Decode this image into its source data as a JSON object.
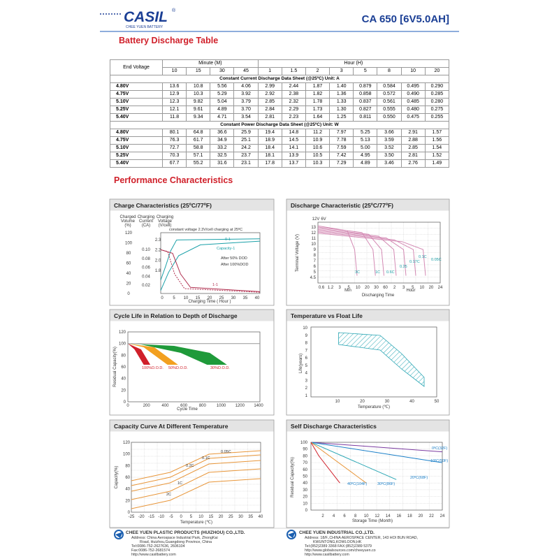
{
  "header": {
    "brand": "CASIL",
    "registered": "®",
    "brand_sub": "CHEE YUEN BATTERY",
    "model": "CA 650 [6V5.0AH]"
  },
  "discharge_table": {
    "title": "Battery Discharge Table",
    "end_voltage": "End Voltage",
    "minute_group": "Minute (M)",
    "hour_group": "Hour (H)",
    "columns": [
      "10",
      "15",
      "30",
      "45",
      "1",
      "1.5",
      "2",
      "3",
      "5",
      "8",
      "10",
      "20"
    ],
    "sections": [
      {
        "heading": "Constant Current Discharge Data Sheet (@25ºC) Unit: A",
        "rows": [
          [
            "4.80V",
            "13.6",
            "10.8",
            "5.56",
            "4.06",
            "2.99",
            "2.44",
            "1.87",
            "1.40",
            "0.879",
            "0.584",
            "0.495",
            "0.290"
          ],
          [
            "4.75V",
            "12.9",
            "10.3",
            "5.29",
            "3.92",
            "2.92",
            "2.38",
            "1.82",
            "1.36",
            "0.858",
            "0.572",
            "0.490",
            "0.285"
          ],
          [
            "5.10V",
            "12.3",
            "9.82",
            "5.04",
            "3.79",
            "2.85",
            "2.32",
            "1.78",
            "1.33",
            "0.837",
            "0.561",
            "0.485",
            "0.280"
          ],
          [
            "5.25V",
            "12.1",
            "9.61",
            "4.89",
            "3.70",
            "2.84",
            "2.29",
            "1.73",
            "1.30",
            "0.827",
            "0.555",
            "0.480",
            "0.275"
          ],
          [
            "5.40V",
            "11.8",
            "9.34",
            "4.71",
            "3.54",
            "2.81",
            "2.23",
            "1.64",
            "1.25",
            "0.811",
            "0.550",
            "0.475",
            "0.255"
          ]
        ]
      },
      {
        "heading": "Constant Power Discharge Data Sheet (@25ºC) Unit: W",
        "rows": [
          [
            "4.80V",
            "80.1",
            "64.8",
            "36.6",
            "25.9",
            "19.4",
            "14.8",
            "11.2",
            "7.97",
            "5.25",
            "3.66",
            "2.91",
            "1.57"
          ],
          [
            "4.75V",
            "76.3",
            "61.7",
            "34.9",
            "25.1",
            "18.9",
            "14.5",
            "10.9",
            "7.78",
            "5.13",
            "3.59",
            "2.88",
            "1.56"
          ],
          [
            "5.10V",
            "72.7",
            "58.8",
            "33.2",
            "24.2",
            "18.4",
            "14.1",
            "10.6",
            "7.59",
            "5.00",
            "3.52",
            "2.85",
            "1.54"
          ],
          [
            "5.25V",
            "70.3",
            "57.1",
            "32.5",
            "23.7",
            "18.1",
            "13.9",
            "10.5",
            "7.42",
            "4.95",
            "3.50",
            "2.81",
            "1.52"
          ],
          [
            "5.40V",
            "67.7",
            "55.2",
            "31.6",
            "23.1",
            "17.8",
            "13.7",
            "10.3",
            "7.29",
            "4.89",
            "3.46",
            "2.76",
            "1.49"
          ]
        ]
      }
    ]
  },
  "performance": {
    "title": "Performance Characteristics",
    "panels": [
      {
        "title": "Charge Characteristics (25ºC/77ºF)",
        "axis_labels": [
          "Charged",
          "Volume",
          "(%)",
          "Charging",
          "Current",
          "(CA)",
          "Charging",
          "Voltage",
          "(V/cell)",
          "Charging Time ( Hour )"
        ],
        "ytick_columns": [
          [
            "0",
            "20",
            "40",
            "60",
            "80",
            "100",
            "120"
          ],
          [
            "0.02",
            "0.04",
            "0.06",
            "0.08",
            "0.10"
          ],
          [
            "1.8",
            "2.0",
            "2.2",
            "2.3"
          ]
        ],
        "xticks": [
          "0",
          "5",
          "10",
          "15",
          "20",
          "25",
          "30",
          "35",
          "40"
        ],
        "notes": [
          "constant voltage 2.3V/cell charging at 25ºC",
          "Capacity-1",
          "After 50% DOD",
          "After 100%DOD",
          "0-1",
          "1-1"
        ]
      },
      {
        "title": "Discharge Characteristic (25ºC/77ºF)",
        "axis_labels": [
          "12V",
          "6V",
          "Terminal Voltage (V)",
          "Min",
          "Hour",
          "Discharging Time"
        ],
        "ytick_columns": [
          [
            "4.5",
            "5",
            "6",
            "7",
            "8",
            "9",
            "10",
            "11",
            "12",
            "13"
          ]
        ],
        "xticks": [
          "0.6",
          "1.2",
          "3",
          "5",
          "10",
          "20",
          "30",
          "60",
          "2",
          "3",
          "5",
          "10",
          "20",
          "24"
        ],
        "notes": [
          "3C",
          "1C",
          "0.6C",
          "0.25",
          "0.17C",
          "0.1C",
          "0.05C"
        ]
      },
      {
        "title": "Cycle Life in Relation to Depth of Discharge",
        "axis_labels": [
          "Residual Capacity(%)",
          "Cycle Time"
        ],
        "ytick_columns": [
          [
            "0",
            "20",
            "40",
            "60",
            "80",
            "100",
            "120"
          ]
        ],
        "xticks": [
          "0",
          "200",
          "400",
          "600",
          "800",
          "1000",
          "1200",
          "1400"
        ],
        "notes": [
          "100%D.O.D.",
          "50%D.O.D.",
          "30%D.O.D."
        ]
      },
      {
        "title": "Temperature vs Float Life",
        "axis_labels": [
          "Life(years)",
          "Temperature (℃)"
        ],
        "ytick_columns": [
          [
            "1",
            "2",
            "3",
            "4",
            "5",
            "6",
            "7",
            "8",
            "9",
            "10"
          ]
        ],
        "xticks": [
          "10",
          "20",
          "30",
          "40",
          "50"
        ],
        "notes": []
      },
      {
        "title": "Capacity Curve At Different Temperature",
        "axis_labels": [
          "Capacity(%)",
          "Temperature (℃)"
        ],
        "ytick_columns": [
          [
            "0",
            "20",
            "40",
            "60",
            "80",
            "100",
            "120"
          ]
        ],
        "xticks": [
          "-25",
          "-20",
          "-15",
          "-10",
          "-5",
          "0",
          "5",
          "10",
          "15",
          "20",
          "25",
          "30",
          "35",
          "40"
        ],
        "notes": [
          "0.05C",
          "0.1C",
          "0.2C",
          "1C",
          "2C"
        ]
      },
      {
        "title": "Self Discharge Characteristics",
        "axis_labels": [
          "Residual Capacity(%)",
          "Storage Time (Month)"
        ],
        "ytick_columns": [
          [
            "0",
            "10",
            "20",
            "30",
            "40",
            "50",
            "60",
            "70",
            "80",
            "90",
            "100"
          ]
        ],
        "xticks": [
          "2",
          "4",
          "6",
          "8",
          "10",
          "12",
          "14",
          "16",
          "18",
          "20",
          "22",
          "24"
        ],
        "notes": [
          "0ºC(32F)",
          "10ºC(50F)",
          "20ºC(68F)",
          "30ºC(86F)",
          "40ºC(104F)"
        ]
      }
    ]
  },
  "footer": {
    "left": {
      "company": "CHEE YUEN PLASTIC PRODUCTS (HUIZHOU) CO.,LTD.",
      "lines": [
        "Address: China Aerospace Industrial Park, ZhongKai",
        "Road, Huizhou,Guangdong Province, China",
        "Tel:0086-752-2627636, 2606104",
        "Fax:0086-752-2681574",
        "http://www.casilbattery.com"
      ]
    },
    "right": {
      "company": "CHEE YUEN INDUSTRIAL CO.,LTD.",
      "lines": [
        "Address: 18/F.,CHINA AEROSPACE CENTER, 143 HOI BUN ROAD,",
        "KWUNTONG,KOWLOON,HK",
        "Tel:(852)2389 3368  FAX:(852)2389 5379",
        "http://www.globalsources.com/cheeyuen.co",
        "http://www.casilbattery.com"
      ]
    }
  }
}
